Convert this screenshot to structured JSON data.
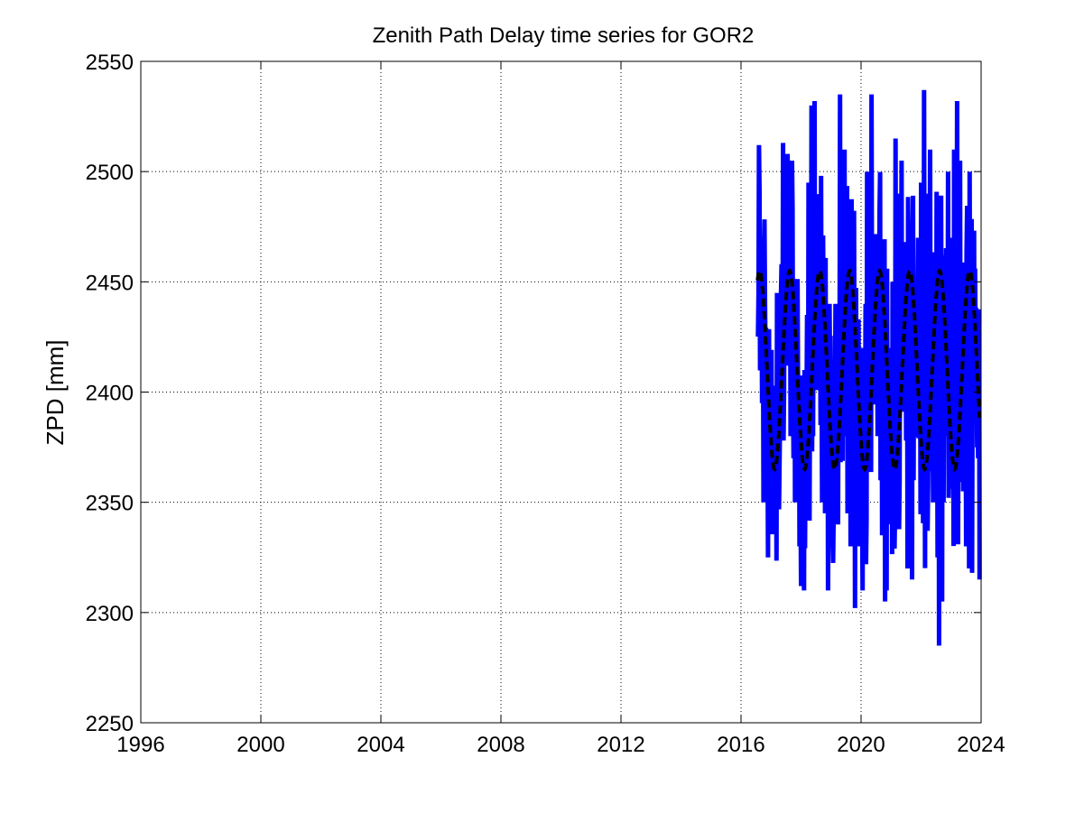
{
  "chart_data": {
    "type": "line",
    "title": "Zenith Path Delay time series for GOR2",
    "xlabel": "",
    "ylabel": "ZPD [mm]",
    "xlim": [
      1996,
      2024
    ],
    "ylim": [
      2250,
      2550
    ],
    "xticks": [
      1996,
      2000,
      2004,
      2008,
      2012,
      2016,
      2020,
      2024
    ],
    "yticks": [
      2250,
      2300,
      2350,
      2400,
      2450,
      2500,
      2550
    ],
    "grid": true,
    "series": [
      {
        "kind": "observed",
        "style": "solid",
        "color": "#0000ff",
        "x": [
          2016.55,
          2016.6,
          2016.65,
          2016.7,
          2016.75,
          2016.8,
          2016.85,
          2016.9,
          2016.95,
          2017.0,
          2017.05,
          2017.1,
          2017.15,
          2017.2,
          2017.25,
          2017.3,
          2017.35,
          2017.4,
          2017.45,
          2017.5,
          2017.55,
          2017.6,
          2017.65,
          2017.7,
          2017.75,
          2017.8,
          2017.85,
          2017.9,
          2017.95,
          2018.0,
          2018.05,
          2018.1,
          2018.15,
          2018.2,
          2018.25,
          2018.3,
          2018.35,
          2018.4,
          2018.45,
          2018.5,
          2018.55,
          2018.6,
          2018.65,
          2018.7,
          2018.75,
          2018.8,
          2018.85,
          2018.9,
          2018.95,
          2019.0,
          2019.05,
          2019.1,
          2019.15,
          2019.2,
          2019.25,
          2019.3,
          2019.35,
          2019.4,
          2019.45,
          2019.5,
          2019.55,
          2019.6,
          2019.65,
          2019.7,
          2019.75,
          2019.8,
          2019.85,
          2019.9,
          2019.95,
          2020.0,
          2020.05,
          2020.1,
          2020.15,
          2020.2,
          2020.25,
          2020.3,
          2020.35,
          2020.4,
          2020.45,
          2020.5,
          2020.55,
          2020.6,
          2020.65,
          2020.7,
          2020.75,
          2020.8,
          2020.85,
          2020.9,
          2020.95,
          2021.0,
          2021.05,
          2021.1,
          2021.15,
          2021.2,
          2021.25,
          2021.3,
          2021.35,
          2021.4,
          2021.45,
          2021.5,
          2021.55,
          2021.6,
          2021.65,
          2021.7,
          2021.75,
          2021.8,
          2021.85,
          2021.9,
          2021.95,
          2022.0,
          2022.05,
          2022.1,
          2022.15,
          2022.2,
          2022.25,
          2022.3,
          2022.35,
          2022.4,
          2022.45,
          2022.5,
          2022.55,
          2022.6,
          2022.65,
          2022.7,
          2022.75,
          2022.8,
          2022.85,
          2022.9,
          2022.95,
          2023.0,
          2023.05,
          2023.1,
          2023.15,
          2023.2,
          2023.25,
          2023.3,
          2023.35,
          2023.4,
          2023.45,
          2023.5,
          2023.55,
          2023.6,
          2023.65,
          2023.7,
          2023.75,
          2023.8,
          2023.85,
          2023.9,
          2023.95
        ],
        "y": [
          2425,
          2512,
          2470,
          2395,
          2350,
          2440,
          2380,
          2325,
          2360,
          2410,
          2350,
          2372,
          2398,
          2445,
          2432,
          2385,
          2458,
          2513,
          2485,
          2412,
          2508,
          2440,
          2380,
          2505,
          2370,
          2350,
          2440,
          2400,
          2330,
          2312,
          2400,
          2310,
          2370,
          2435,
          2495,
          2410,
          2530,
          2380,
          2532,
          2440,
          2405,
          2470,
          2385,
          2350,
          2440,
          2345,
          2400,
          2310,
          2440,
          2380,
          2335,
          2345,
          2440,
          2375,
          2420,
          2535,
          2500,
          2425,
          2510,
          2380,
          2345,
          2420,
          2330,
          2360,
          2395,
          2302,
          2350,
          2330,
          2405,
          2420,
          2310,
          2395,
          2440,
          2500,
          2420,
          2485,
          2535,
          2460,
          2405,
          2400,
          2380,
          2430,
          2360,
          2335,
          2365,
          2305,
          2310,
          2380,
          2340,
          2420,
          2450,
          2435,
          2515,
          2440,
          2490,
          2440,
          2505,
          2400,
          2420,
          2378,
          2320,
          2375,
          2330,
          2315,
          2360,
          2415,
          2400,
          2470,
          2450,
          2495,
          2420,
          2537,
          2490,
          2450,
          2405,
          2510,
          2440,
          2350,
          2400,
          2350,
          2325,
          2285,
          2370,
          2305,
          2350,
          2380,
          2435,
          2500,
          2420,
          2415,
          2470,
          2510,
          2438,
          2532,
          2480,
          2505,
          2420,
          2355,
          2440,
          2330,
          2400,
          2320,
          2420,
          2318,
          2390,
          2456,
          2410,
          2370,
          2315
        ]
      },
      {
        "kind": "model",
        "style": "dashed",
        "color": "#000000",
        "amplitude": 45,
        "mean": 2410,
        "phase_peak": 0.62,
        "x_start": 2016.55,
        "x_end": 2023.95
      }
    ]
  }
}
